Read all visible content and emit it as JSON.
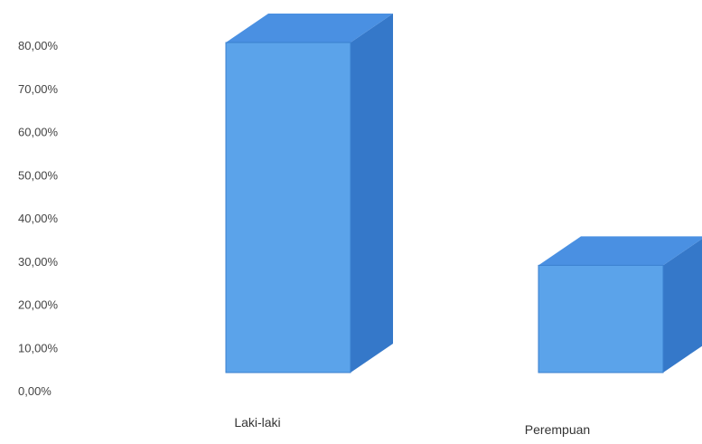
{
  "chart_data": {
    "type": "bar",
    "style": "3d-column",
    "categories": [
      "Laki-laki",
      "Perempuan"
    ],
    "values": [
      0.8,
      0.26
    ],
    "yticks": [
      "0,00%",
      "10,00%",
      "20,00%",
      "30,00%",
      "40,00%",
      "50,00%",
      "60,00%",
      "70,00%",
      "80,00%"
    ],
    "ylim": [
      0,
      0.8
    ],
    "grid": false,
    "legend": "none",
    "colors": {
      "front": "#5ba3ea",
      "top": "#4a90e2",
      "side": "#3578c9",
      "edge": "#3a7fcf"
    }
  }
}
